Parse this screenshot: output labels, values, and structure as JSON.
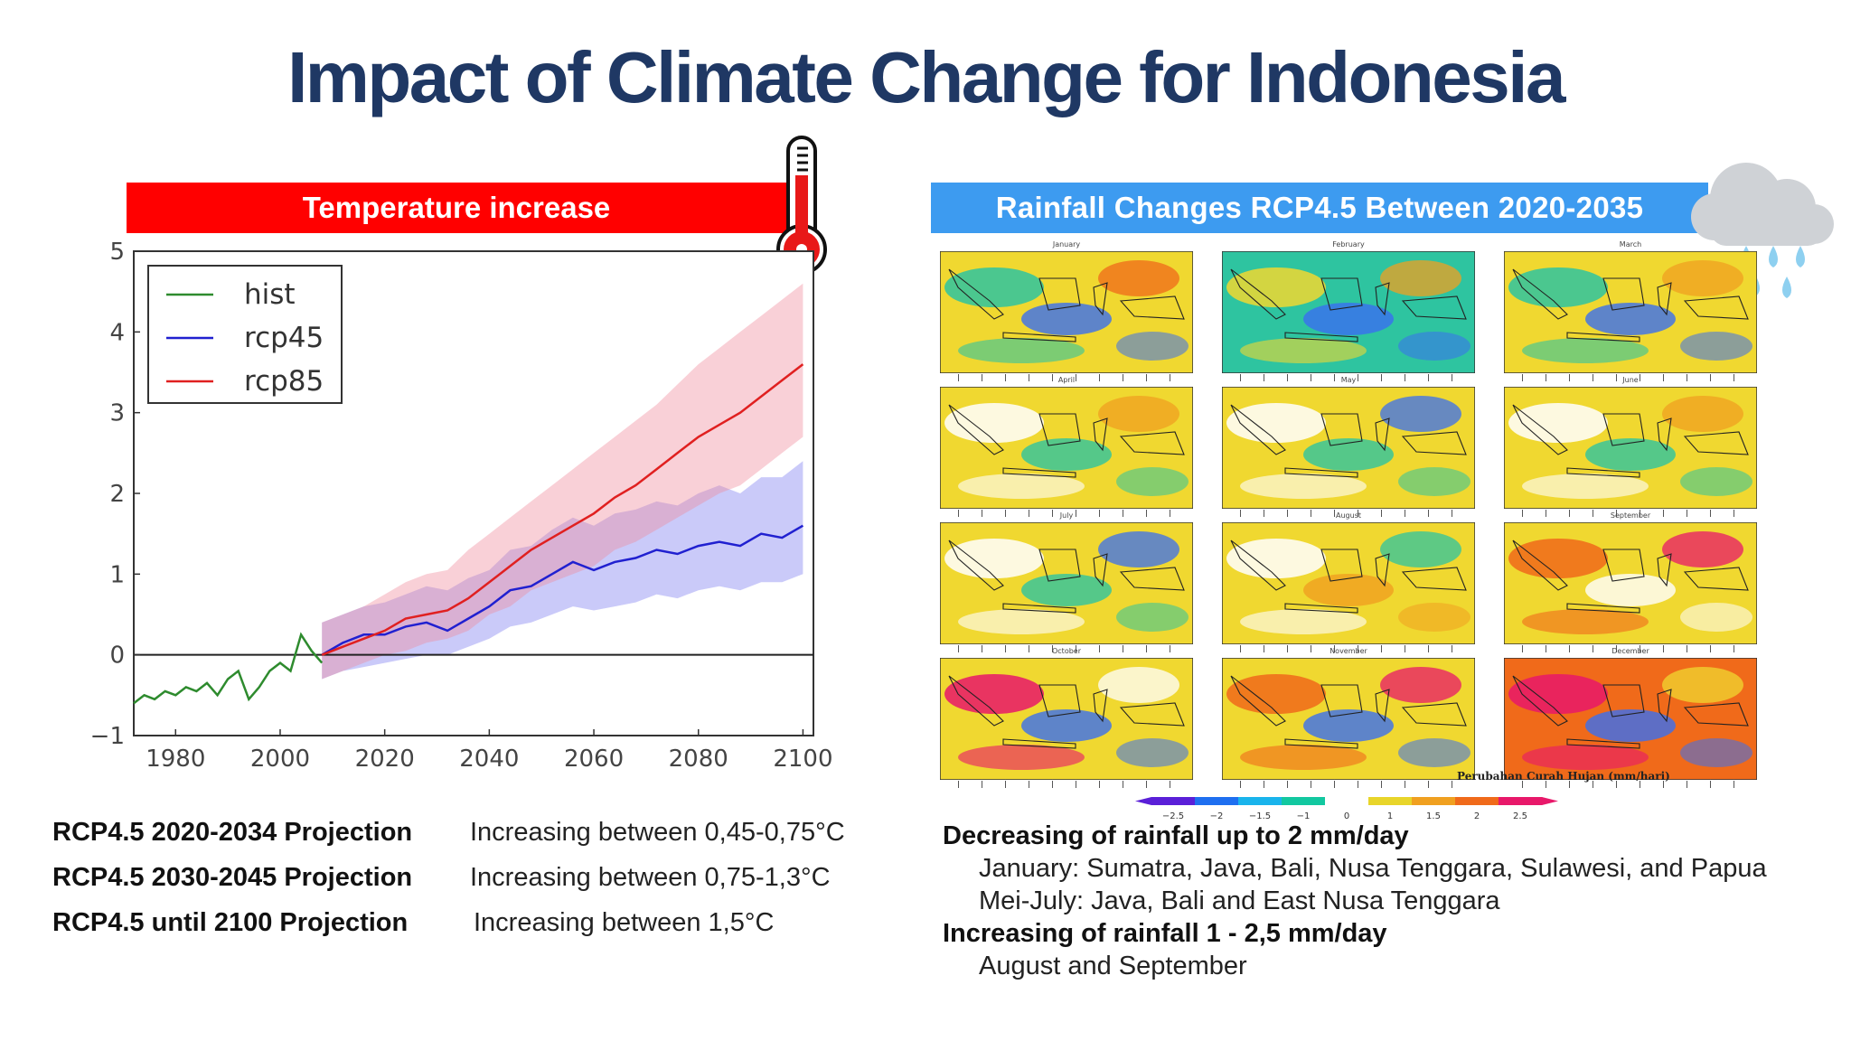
{
  "slide": {
    "title": "Impact of Climate Change for Indonesia",
    "temp_header": "Temperature increase",
    "rain_header": "Rainfall Changes RCP4.5 Between 2020-2035"
  },
  "colors": {
    "title": "#1f3864",
    "temp_header": "#ff0000",
    "rain_header": "#3d9bf0",
    "hist": "#2e8b2e",
    "rcp45": "#2020d0",
    "rcp85": "#e02020"
  },
  "chart_data": {
    "type": "line",
    "xlim": [
      1972,
      2102
    ],
    "ylim": [
      -1,
      5
    ],
    "xticks": [
      1980,
      2000,
      2020,
      2040,
      2060,
      2080,
      2100
    ],
    "yticks": [
      -1,
      0,
      1,
      2,
      3,
      4,
      5
    ],
    "xtick_labels": [
      "1980",
      "2000",
      "2020",
      "2040",
      "2060",
      "2080",
      "2100"
    ],
    "ytick_labels": [
      "−1",
      "0",
      "1",
      "2",
      "3",
      "4",
      "5"
    ],
    "legend": "top-left",
    "reference_line_y": 0,
    "series": [
      {
        "name": "hist",
        "color": "#2e8b2e",
        "x": [
          1972,
          1974,
          1976,
          1978,
          1980,
          1982,
          1984,
          1986,
          1988,
          1990,
          1992,
          1994,
          1996,
          1998,
          2000,
          2002,
          2004,
          2006,
          2008
        ],
        "values": [
          -0.6,
          -0.5,
          -0.55,
          -0.45,
          -0.5,
          -0.4,
          -0.45,
          -0.35,
          -0.5,
          -0.3,
          -0.2,
          -0.55,
          -0.4,
          -0.2,
          -0.1,
          -0.2,
          0.25,
          0.05,
          -0.1
        ]
      },
      {
        "name": "rcp45",
        "color": "#2020d0",
        "x": [
          2008,
          2012,
          2016,
          2020,
          2024,
          2028,
          2032,
          2036,
          2040,
          2044,
          2048,
          2052,
          2056,
          2060,
          2064,
          2068,
          2072,
          2076,
          2080,
          2084,
          2088,
          2092,
          2096,
          2100
        ],
        "values": [
          0.0,
          0.15,
          0.25,
          0.25,
          0.35,
          0.4,
          0.3,
          0.45,
          0.6,
          0.8,
          0.85,
          1.0,
          1.15,
          1.05,
          1.15,
          1.2,
          1.3,
          1.25,
          1.35,
          1.4,
          1.35,
          1.5,
          1.45,
          1.6
        ],
        "band_low": [
          -0.3,
          -0.2,
          -0.15,
          -0.1,
          -0.05,
          0.0,
          0.0,
          0.1,
          0.2,
          0.35,
          0.4,
          0.5,
          0.6,
          0.55,
          0.6,
          0.65,
          0.75,
          0.7,
          0.8,
          0.85,
          0.8,
          0.9,
          0.9,
          1.0
        ],
        "band_high": [
          0.4,
          0.5,
          0.6,
          0.65,
          0.75,
          0.85,
          0.8,
          0.95,
          1.05,
          1.3,
          1.35,
          1.55,
          1.7,
          1.6,
          1.75,
          1.8,
          1.9,
          1.85,
          2.0,
          2.1,
          2.0,
          2.2,
          2.2,
          2.4
        ]
      },
      {
        "name": "rcp85",
        "color": "#e02020",
        "x": [
          2008,
          2012,
          2016,
          2020,
          2024,
          2028,
          2032,
          2036,
          2040,
          2044,
          2048,
          2052,
          2056,
          2060,
          2064,
          2068,
          2072,
          2076,
          2080,
          2084,
          2088,
          2092,
          2096,
          2100
        ],
        "values": [
          0.0,
          0.1,
          0.2,
          0.3,
          0.45,
          0.5,
          0.55,
          0.7,
          0.9,
          1.1,
          1.3,
          1.45,
          1.6,
          1.75,
          1.95,
          2.1,
          2.3,
          2.5,
          2.7,
          2.85,
          3.0,
          3.2,
          3.4,
          3.6
        ],
        "band_low": [
          -0.3,
          -0.2,
          -0.1,
          0.0,
          0.05,
          0.15,
          0.2,
          0.3,
          0.5,
          0.6,
          0.8,
          0.9,
          1.0,
          1.1,
          1.3,
          1.4,
          1.55,
          1.7,
          1.85,
          2.0,
          2.1,
          2.3,
          2.5,
          2.7
        ],
        "band_high": [
          0.4,
          0.5,
          0.6,
          0.75,
          0.9,
          1.0,
          1.05,
          1.3,
          1.5,
          1.7,
          1.9,
          2.1,
          2.3,
          2.5,
          2.7,
          2.9,
          3.1,
          3.35,
          3.6,
          3.8,
          4.0,
          4.2,
          4.4,
          4.6
        ]
      }
    ]
  },
  "maps": {
    "months": [
      "January",
      "February",
      "March",
      "April",
      "May",
      "June",
      "July",
      "August",
      "September",
      "October",
      "November",
      "December"
    ],
    "caption": "Perubahan Curah Hujan (mm/hari)",
    "colorbar_labels": [
      "−2.5",
      "−2",
      "−1.5",
      "−1",
      "0",
      "1",
      "1.5",
      "2",
      "2.5"
    ],
    "colorbar_colors": [
      "#5a1fd8",
      "#1e6ff0",
      "#19b4ec",
      "#12c8a0",
      "#ffffff",
      "#e8d52a",
      "#f0a020",
      "#f06a1a",
      "#e8186a"
    ]
  },
  "projections": [
    {
      "label": "RCP4.5 2020-2034  Projection",
      "value": "Increasing between 0,45-0,75°C"
    },
    {
      "label": "RCP4.5 2030-2045 Projection",
      "value": "Increasing between 0,75-1,3°C"
    },
    {
      "label": "RCP4.5 until 2100 Projection",
      "value": "Increasing between 1,5°C"
    }
  ],
  "rainfall_notes": {
    "decrease_head": "Decreasing of rainfall up to 2 mm/day",
    "decrease_items": [
      "January: Sumatra, Java, Bali, Nusa Tenggara, Sulawesi, and Papua",
      "Mei-July: Java, Bali and East Nusa Tenggara"
    ],
    "increase_head": "Increasing of rainfall 1 - 2,5 mm/day",
    "increase_items": [
      "August and September"
    ]
  }
}
